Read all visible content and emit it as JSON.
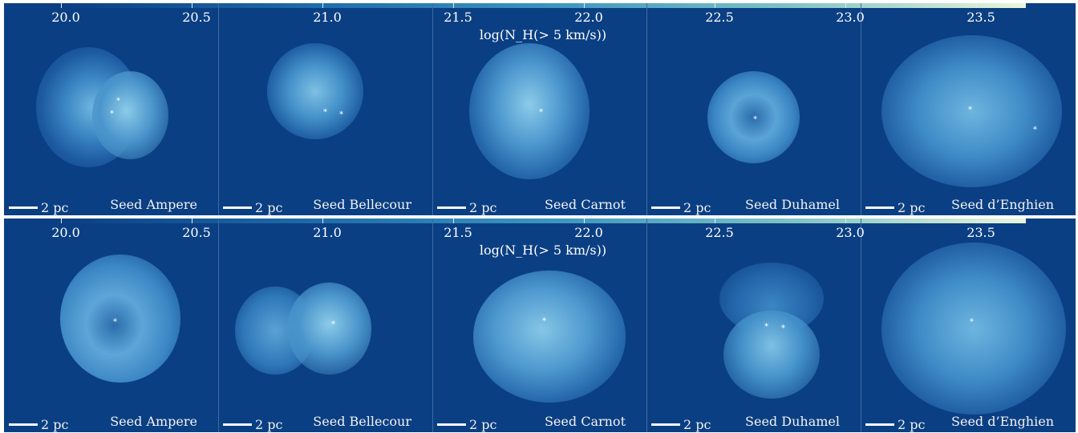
{
  "colorbar": {
    "ticks": [
      "20.0",
      "20.5",
      "21.0",
      "21.5",
      "22.0",
      "22.5",
      "23.0",
      "23.5"
    ],
    "label": "log(N_H(> 5 km/s))"
  },
  "colormap": {
    "background": "#0b3f83",
    "low": "#1d6aa8",
    "mid": "#3a94be",
    "high": "#7cc2c6",
    "peak": "#eaf6d9"
  },
  "scale_bar": "2 pc",
  "rows": [
    {
      "panels": [
        {
          "seed": "Seed Ampere"
        },
        {
          "seed": "Seed Bellecour"
        },
        {
          "seed": "Seed Carnot"
        },
        {
          "seed": "Seed Duhamel"
        },
        {
          "seed": "Seed d’Enghien"
        }
      ]
    },
    {
      "panels": [
        {
          "seed": "Seed Ampere"
        },
        {
          "seed": "Seed Bellecour"
        },
        {
          "seed": "Seed Carnot"
        },
        {
          "seed": "Seed Duhamel"
        },
        {
          "seed": "Seed d’Enghien"
        }
      ]
    }
  ]
}
